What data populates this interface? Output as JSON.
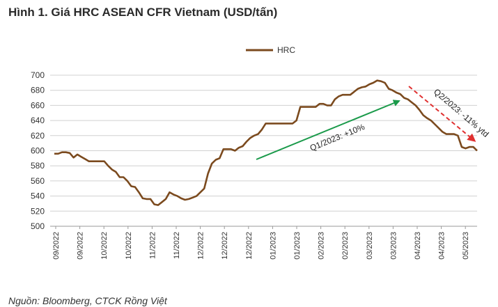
{
  "header": {
    "title": "Hình 1. Giá HRC ASEAN CFR Vietnam (USD/tấn)"
  },
  "footer": {
    "source": "Nguồn: Bloomberg, CTCK Rồng Việt"
  },
  "chart_data": {
    "type": "line",
    "title": "Hình 1. Giá HRC ASEAN CFR Vietnam (USD/tấn)",
    "xlabel": "",
    "ylabel": "",
    "ylim": [
      500,
      700
    ],
    "yticks": [
      500,
      520,
      540,
      560,
      580,
      600,
      620,
      640,
      660,
      680,
      700
    ],
    "grid": true,
    "legend": {
      "position": "top-center",
      "entries": [
        "HRC"
      ]
    },
    "x_tick_labels": [
      "09/2022",
      "09/2022",
      "10/2022",
      "10/2022",
      "11/2022",
      "11/2022",
      "12/2022",
      "12/2022",
      "12/2022",
      "01/2023",
      "01/2023",
      "02/2023",
      "02/2023",
      "03/2023",
      "03/2023",
      "04/2023",
      "04/2023",
      "05/2023"
    ],
    "series": [
      {
        "name": "HRC",
        "color": "#7b4a1e",
        "values": [
          596,
          596,
          598,
          598,
          597,
          591,
          595,
          592,
          589,
          586,
          586,
          586,
          586,
          586,
          580,
          575,
          572,
          565,
          565,
          560,
          553,
          552,
          545,
          537,
          536,
          536,
          529,
          528,
          532,
          536,
          545,
          542,
          540,
          537,
          535,
          536,
          538,
          540,
          545,
          550,
          570,
          583,
          588,
          590,
          602,
          602,
          602,
          600,
          604,
          606,
          612,
          617,
          620,
          622,
          628,
          636,
          636,
          636,
          636,
          636,
          636,
          636,
          636,
          640,
          658,
          658,
          658,
          658,
          658,
          662,
          662,
          660,
          660,
          668,
          672,
          674,
          674,
          674,
          678,
          682,
          684,
          685,
          688,
          690,
          693,
          692,
          690,
          682,
          680,
          677,
          675,
          670,
          668,
          664,
          660,
          654,
          647,
          643,
          640,
          635,
          630,
          625,
          622,
          622,
          622,
          620,
          605,
          603,
          605,
          605,
          600
        ]
      }
    ],
    "annotations": [
      {
        "text": "Q1/2023: +10%",
        "color": "#1a9a4a",
        "style": "solid-arrow"
      },
      {
        "text": "Q2/2023: -11% ytd",
        "color": "#e03030",
        "style": "dashed-arrow"
      }
    ]
  }
}
